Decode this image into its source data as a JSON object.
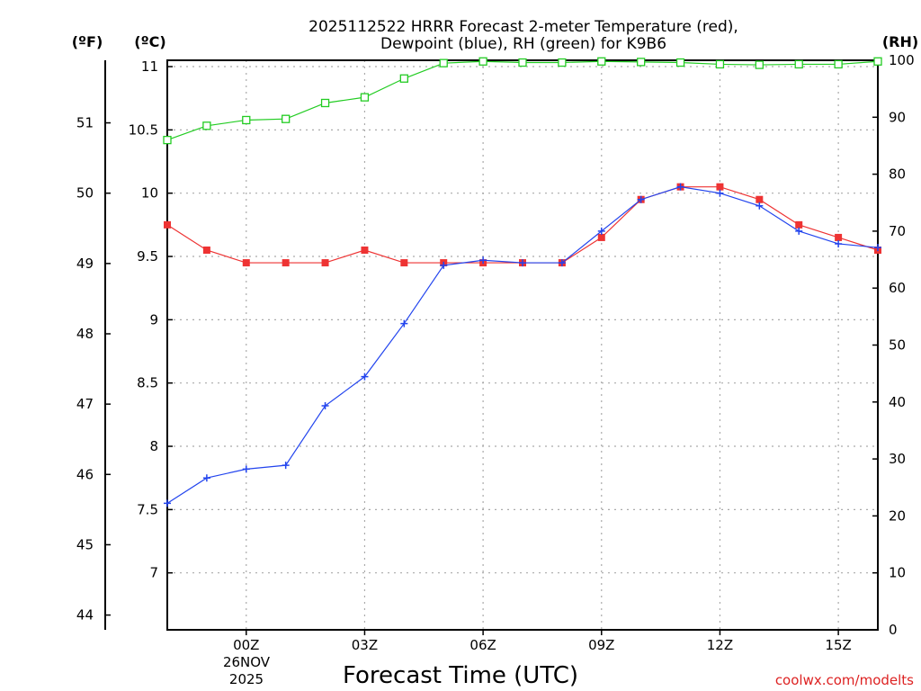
{
  "chart_data": {
    "type": "line",
    "title_line1": "2025112522 HRRR Forecast 2-meter Temperature (red),",
    "title_line2": "Dewpoint (blue), RH (green) for K9B6",
    "xlabel": "Forecast Time (UTC)",
    "x_ticks": [
      "00Z",
      "03Z",
      "06Z",
      "09Z",
      "12Z",
      "15Z"
    ],
    "x_tick_hours": [
      2,
      5,
      8,
      11,
      14,
      17
    ],
    "x_date_day": "26NOV",
    "x_date_year": "2025",
    "x_range_hours": [
      0,
      18
    ],
    "y_left_inner": {
      "unit": "(ºC)",
      "range": [
        6.55,
        11.05
      ],
      "ticks": [
        "7",
        "7.5",
        "8",
        "8.5",
        "9",
        "9.5",
        "10",
        "10.5",
        "11"
      ]
    },
    "y_left_outer": {
      "unit": "(ºF)",
      "ticks": [
        "44",
        "45",
        "46",
        "47",
        "48",
        "49",
        "50",
        "51"
      ]
    },
    "y_right": {
      "unit": "(RH)",
      "range": [
        0,
        100
      ],
      "ticks": [
        "0",
        "10",
        "20",
        "30",
        "40",
        "50",
        "60",
        "70",
        "80",
        "90",
        "100"
      ]
    },
    "series": [
      {
        "name": "Temperature",
        "axis": "celsius",
        "color": "#ee3333",
        "marker": "filled-square",
        "values": [
          9.75,
          9.55,
          9.45,
          9.45,
          9.45,
          9.55,
          9.45,
          9.45,
          9.45,
          9.45,
          9.45,
          9.65,
          9.95,
          10.05,
          10.05,
          9.95,
          9.75,
          9.65,
          9.55
        ]
      },
      {
        "name": "Dewpoint",
        "axis": "celsius",
        "color": "#2244ee",
        "marker": "plus",
        "values": [
          7.55,
          7.75,
          7.82,
          7.85,
          8.32,
          8.55,
          8.97,
          9.43,
          9.47,
          9.45,
          9.45,
          9.7,
          9.95,
          10.05,
          10.0,
          9.9,
          9.7,
          9.6,
          9.57
        ]
      },
      {
        "name": "RH",
        "axis": "rh",
        "color": "#22cc22",
        "marker": "open-square",
        "values": [
          86,
          88.5,
          89.5,
          89.7,
          92.5,
          93.5,
          96.8,
          99.5,
          99.8,
          99.6,
          99.6,
          99.8,
          99.7,
          99.6,
          99.3,
          99.2,
          99.3,
          99.3,
          99.8
        ]
      }
    ],
    "grid": true
  },
  "credit": "coolwx.com/modelts"
}
